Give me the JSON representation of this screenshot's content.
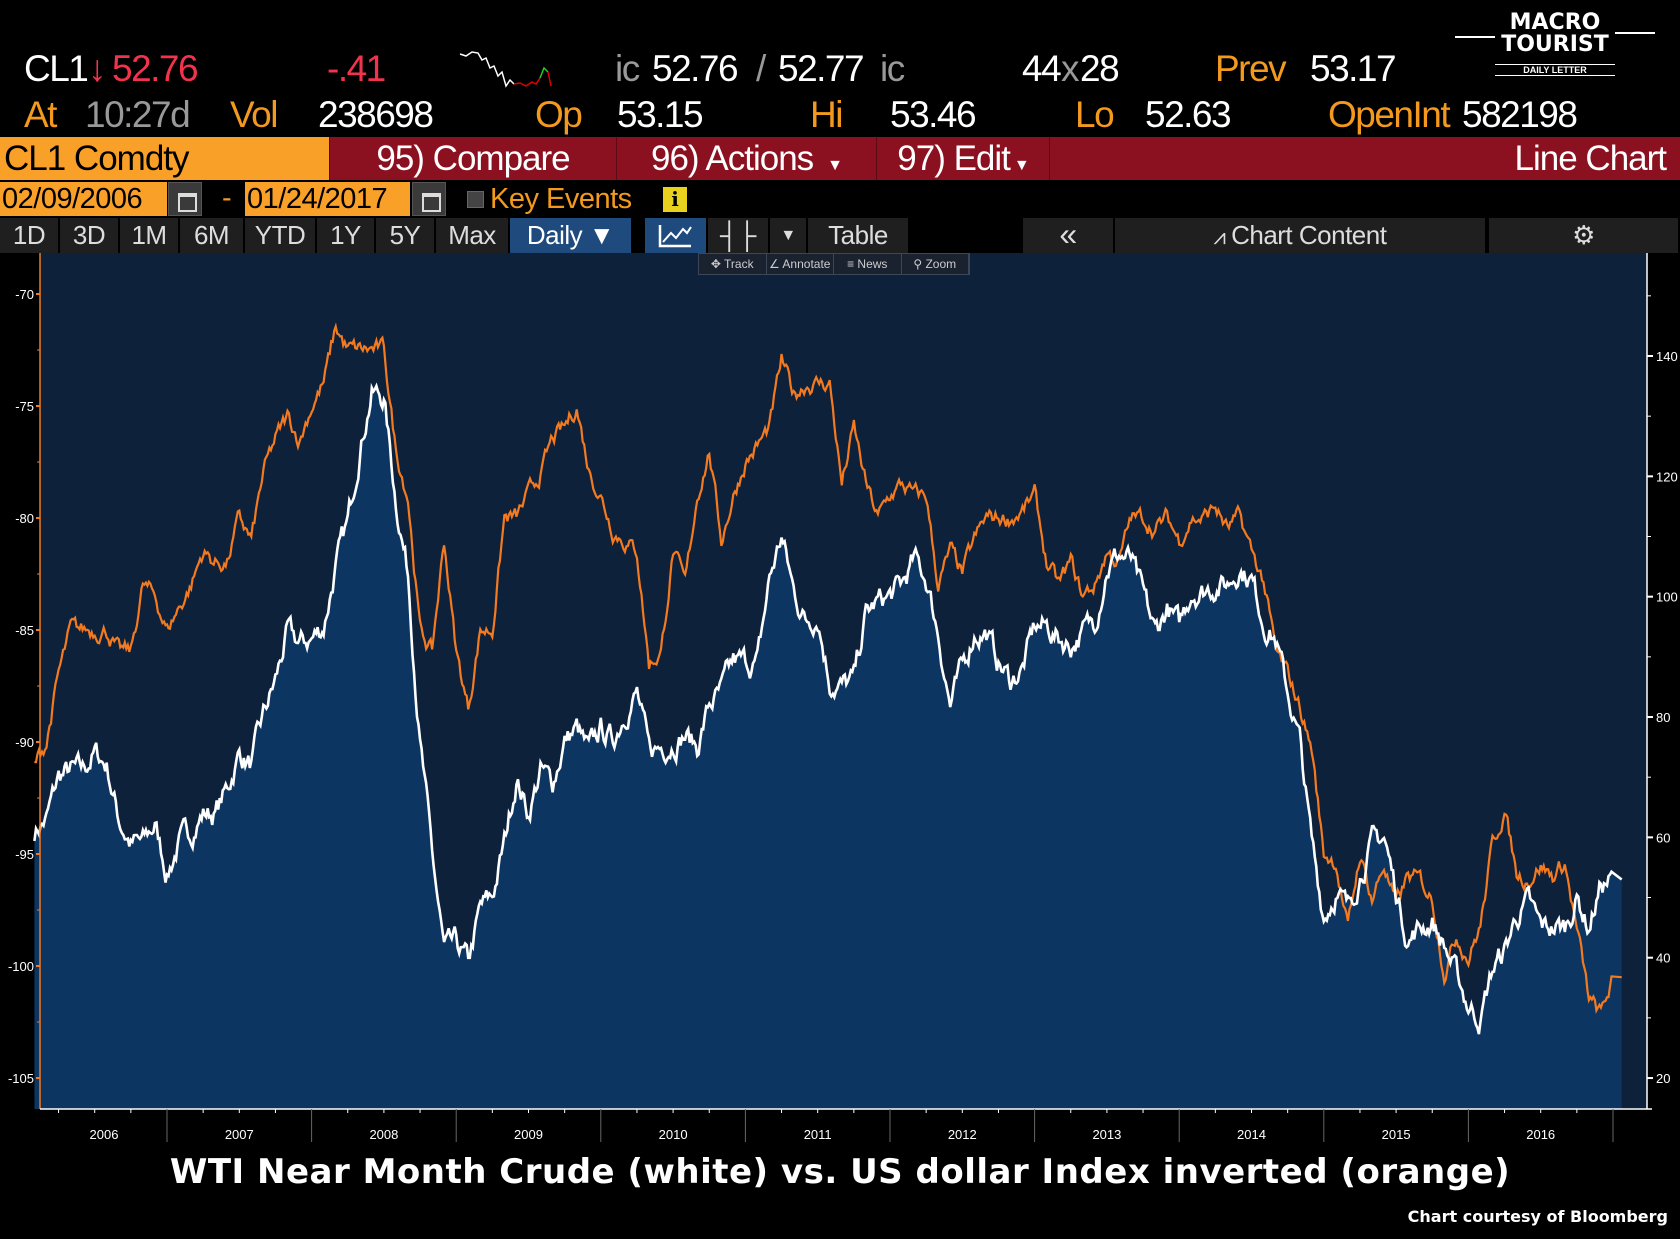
{
  "quote": {
    "ticker": "CL1",
    "last": "52.76",
    "change": "-.41",
    "bid_prefix": "ic",
    "bid": "52.76",
    "sep": "/",
    "ask": "52.77",
    "ask_suffix": "ic",
    "size_bid": "44",
    "size_x": "x",
    "size_ask": "28",
    "prev_label": "Prev",
    "prev": "53.17",
    "at_label": "At",
    "time": "10:27d",
    "vol_label": "Vol",
    "vol": "238698",
    "op_label": "Op",
    "op": "53.15",
    "hi_label": "Hi",
    "hi": "53.46",
    "lo_label": "Lo",
    "lo": "52.63",
    "openint_label": "OpenInt",
    "openint": "582198"
  },
  "logo": {
    "line1": "MACRO",
    "line2": "TOURIST",
    "line3": "DAILY LETTER"
  },
  "menu": {
    "security": "CL1 Comdty",
    "compare": "95) Compare",
    "actions": "96) Actions",
    "edit": "97) Edit",
    "view": "Line Chart"
  },
  "range": {
    "start": "02/09/2006",
    "dash": "-",
    "end": "01/24/2017",
    "key_events": "Key Events"
  },
  "toolbar": {
    "periods": [
      "1D",
      "3D",
      "1M",
      "6M",
      "YTD",
      "1Y",
      "5Y",
      "Max"
    ],
    "frequency": "Daily ▼",
    "table": "Table",
    "collapse": "«",
    "chart_content": "Chart Content"
  },
  "mini_toolbar": [
    "✥ Track",
    "∠ Annotate",
    "≡ News",
    "⚲ Zoom"
  ],
  "colors": {
    "orange": "#f47a20",
    "white": "#ffffff",
    "fill": "#0c3561",
    "bg": "#0e213a"
  },
  "chart_data": {
    "type": "line",
    "title": "WTI Near Month Crude (white) vs. US dollar Index inverted (orange)",
    "credit": "Chart courtesy of Bloomberg",
    "x_start": "2006-02",
    "x_step": "month",
    "xticks": [
      "2006",
      "2007",
      "2008",
      "2009",
      "2010",
      "2011",
      "2012",
      "2013",
      "2014",
      "2015",
      "2016"
    ],
    "left_axis": {
      "ticks": [
        "-70",
        "-75",
        "-80",
        "-85",
        "-90",
        "-95",
        "-100",
        "-105"
      ],
      "range": [
        -105,
        -70
      ]
    },
    "right_axis": {
      "ticks": [
        "140",
        "120",
        "100",
        "80",
        "60",
        "40",
        "20"
      ],
      "range": [
        20,
        140
      ]
    },
    "series": [
      {
        "name": "WTI Near Month Crude",
        "axis": "right",
        "color": "white",
        "values": [
          61,
          63,
          70,
          71,
          71,
          74,
          72,
          63,
          59,
          59,
          62,
          54,
          59,
          61,
          64,
          64,
          68,
          74,
          72,
          80,
          86,
          94,
          92,
          93,
          95,
          105,
          112,
          125,
          134,
          133,
          116,
          104,
          76,
          57,
          41,
          42,
          39,
          48,
          50,
          59,
          70,
          64,
          71,
          69,
          76,
          78,
          74,
          78,
          76,
          81,
          84,
          74,
          75,
          76,
          77,
          75,
          82,
          84,
          89,
          89,
          89,
          103,
          110,
          101,
          96,
          97,
          86,
          85,
          86,
          97,
          99,
          100,
          102,
          106,
          103,
          94,
          82,
          88,
          94,
          94,
          89,
          86,
          88,
          95,
          95,
          93,
          92,
          94,
          96,
          105,
          107,
          106,
          100,
          94,
          98,
          95,
          101,
          101,
          102,
          102,
          105,
          103,
          96,
          93,
          84,
          76,
          59,
          47,
          51,
          48,
          54,
          59,
          60,
          51,
          43,
          45,
          46,
          42,
          37,
          32,
          30,
          38,
          41,
          47,
          49,
          45,
          45,
          45,
          50,
          45,
          52,
          53
        ]
      },
      {
        "name": "US Dollar Index inverted",
        "axis": "left",
        "color": "orange",
        "values": [
          -91,
          -90,
          -87,
          -85,
          -85,
          -85,
          -85,
          -86,
          -86,
          -83,
          -83.5,
          -85,
          -84,
          -83,
          -81.5,
          -82,
          -82,
          -80,
          -81,
          -78,
          -76.5,
          -75.5,
          -76.5,
          -75,
          -74,
          -71.5,
          -72.5,
          -72.5,
          -72.5,
          -72.5,
          -77,
          -79,
          -85,
          -86,
          -81,
          -86,
          -88.5,
          -85,
          -85,
          -80,
          -80,
          -79,
          -78,
          -76.5,
          -76,
          -75,
          -77.8,
          -79,
          -80.5,
          -81,
          -81.5,
          -86.5,
          -86,
          -81.5,
          -83,
          -79,
          -77,
          -81,
          -79,
          -77.5,
          -76.8,
          -76,
          -73,
          -74.5,
          -74,
          -74,
          -74,
          -78.5,
          -76,
          -78.5,
          -80,
          -79,
          -78.5,
          -79,
          -79,
          -83,
          -81.5,
          -82.5,
          -81,
          -80,
          -80,
          -80,
          -79.7,
          -79,
          -82,
          -83,
          -82,
          -83.5,
          -83,
          -81.5,
          -82,
          -80,
          -80,
          -80.5,
          -80,
          -81,
          -80,
          -80,
          -79.5,
          -80.5,
          -80,
          -81.5,
          -82.8,
          -86,
          -87,
          -88.4,
          -90.3,
          -95,
          -95.3,
          -98.4,
          -95,
          -97,
          -95.5,
          -97.3,
          -96,
          -96.2,
          -97,
          -100.2,
          -98.6,
          -99.6,
          -98.2,
          -94.6,
          -93,
          -95.9,
          -96.1,
          -95.5,
          -96,
          -95.4,
          -98.4,
          -101.5,
          -102.2,
          -100.5
        ]
      }
    ]
  }
}
